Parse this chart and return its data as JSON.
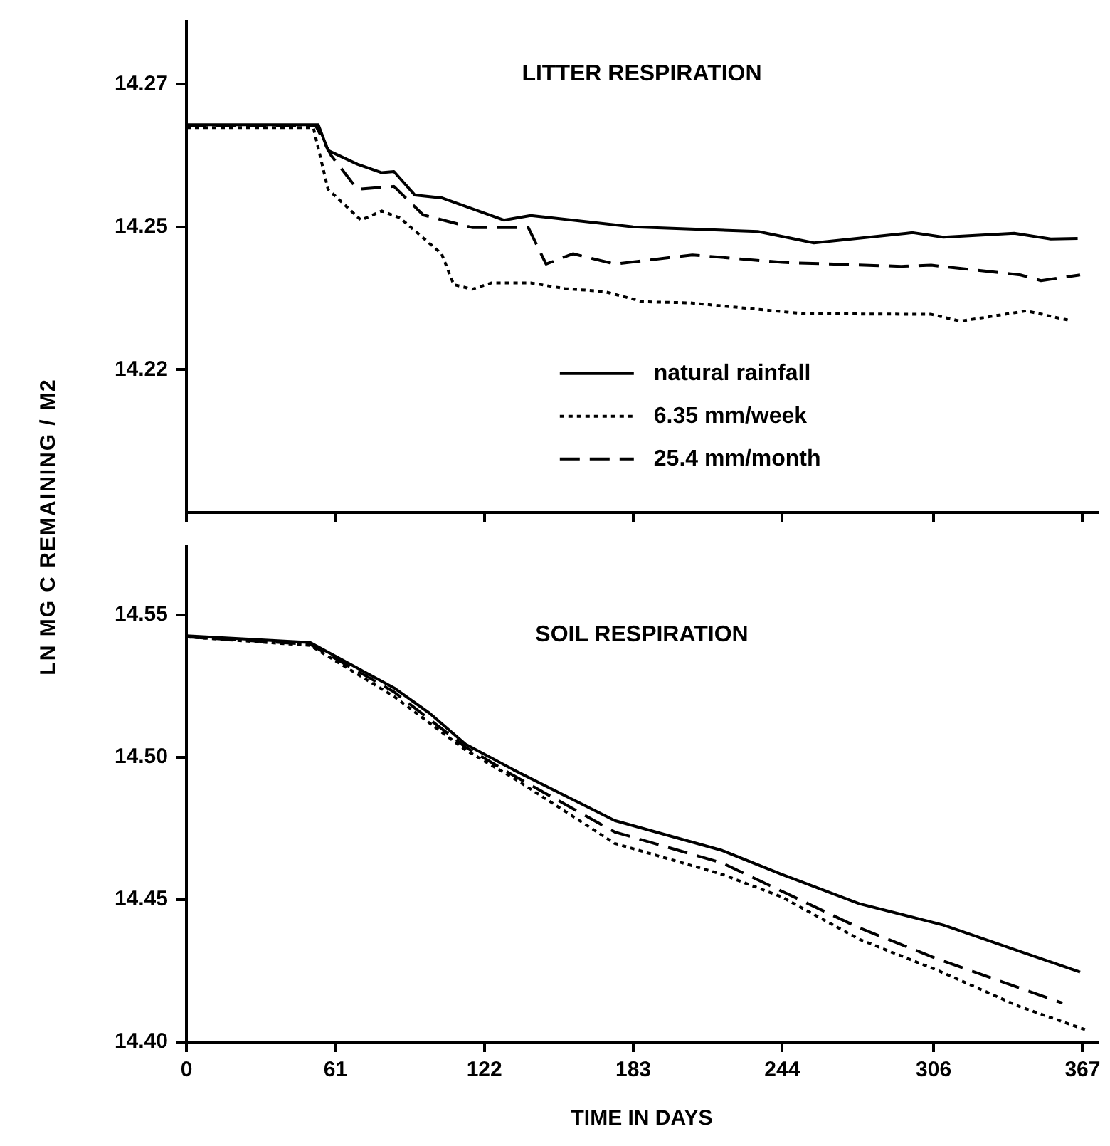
{
  "chart_data": [
    {
      "type": "line",
      "title": "LITTER RESPIRATION",
      "ylabel": "LN MG C REMAINING / M2",
      "xlim": [
        0,
        373
      ],
      "xticks": [
        0,
        61,
        122,
        183,
        244,
        306,
        367
      ],
      "ylim": [
        14.195,
        14.281
      ],
      "yticks": [
        14.27,
        {
          "value": 14.245,
          "label": "14.25"
        },
        14.22
      ],
      "tick_labels": "y",
      "grid": false,
      "legend": "bottom right",
      "series": [
        {
          "name": "natural rainfall",
          "color": "#000000",
          "line_style": "solid",
          "x": [
            0,
            54,
            58,
            70,
            80,
            85,
            93.5,
            104.5,
            130,
            141,
            183,
            234,
            257,
            297.5,
            310,
            339,
            354,
            365
          ],
          "values": [
            14.2629,
            14.2629,
            14.2584,
            14.256,
            14.2545,
            14.2547,
            14.2506,
            14.2501,
            14.2462,
            14.247,
            14.245,
            14.2442,
            14.2422,
            14.244,
            14.2432,
            14.2439,
            14.2429,
            14.243
          ]
        },
        {
          "name": "6.35 mm/week",
          "color": "#000000",
          "line_style": "dotted",
          "x": [
            0,
            52,
            58,
            71.5,
            80,
            87.4,
            104.5,
            109.5,
            117,
            125,
            141,
            155,
            171,
            187,
            206.5,
            253,
            305,
            317,
            344,
            361
          ],
          "values": [
            14.2624,
            14.2624,
            14.2516,
            14.2462,
            14.2478,
            14.2466,
            14.2403,
            14.2349,
            14.2341,
            14.2352,
            14.2352,
            14.2342,
            14.2337,
            14.2319,
            14.2317,
            14.2298,
            14.2297,
            14.2285,
            14.2303,
            14.2287
          ]
        },
        {
          "name": "25.4 mm/month",
          "color": "#000000",
          "line_style": "dashed",
          "x": [
            0,
            53,
            59.3,
            70,
            85,
            97,
            117,
            140,
            147.3,
            158.3,
            175.5,
            207.2,
            244,
            292.7,
            305,
            341.6,
            350,
            366
          ],
          "values": [
            14.2627,
            14.2627,
            14.2575,
            14.2516,
            14.2521,
            14.2471,
            14.2449,
            14.2449,
            14.2385,
            14.2403,
            14.2385,
            14.2401,
            14.2388,
            14.2381,
            14.2383,
            14.2366,
            14.2356,
            14.2366
          ]
        }
      ]
    },
    {
      "type": "line",
      "title": "SOIL RESPIRATION",
      "xlabel": "TIME IN DAYS",
      "xlim": [
        0,
        373
      ],
      "xticks": [
        0,
        61,
        122,
        183,
        244,
        306,
        367
      ],
      "ylim": [
        14.4,
        14.574
      ],
      "yticks": [
        {
          "value": 14.55,
          "label": "14.55"
        },
        {
          "value": 14.5,
          "label": "14.50"
        },
        {
          "value": 14.45,
          "label": "14.45"
        },
        {
          "value": 14.4,
          "label": "14.40"
        }
      ],
      "grid": false,
      "series": [
        {
          "color": "#000000",
          "line_style": "solid",
          "x": [
            0,
            50.7,
            85,
            99.6,
            114.3,
            134,
            175.4,
            219.4,
            243.8,
            275.6,
            310,
            366
          ],
          "values": [
            14.5427,
            14.5403,
            14.5244,
            14.5155,
            14.5046,
            14.4956,
            14.4778,
            14.4673,
            14.4589,
            14.4486,
            14.4411,
            14.4246
          ]
        },
        {
          "color": "#000000",
          "line_style": "dotted",
          "x": [
            0,
            50.7,
            85,
            114.3,
            134,
            175.4,
            219.4,
            243.8,
            275.6,
            307.6,
            341.7,
            368
          ],
          "values": [
            14.5423,
            14.5393,
            14.5214,
            14.5026,
            14.4927,
            14.4698,
            14.4589,
            14.451,
            14.4361,
            14.4252,
            14.4123,
            14.4044
          ]
        },
        {
          "color": "#000000",
          "line_style": "dashed",
          "x": [
            0,
            50.7,
            85,
            114.3,
            134,
            175.4,
            219.4,
            243.8,
            275.6,
            307.6,
            358.8
          ],
          "values": [
            14.5423,
            14.5397,
            14.523,
            14.5036,
            14.4936,
            14.4738,
            14.4629,
            14.453,
            14.4401,
            14.4292,
            14.4137
          ]
        }
      ]
    }
  ]
}
